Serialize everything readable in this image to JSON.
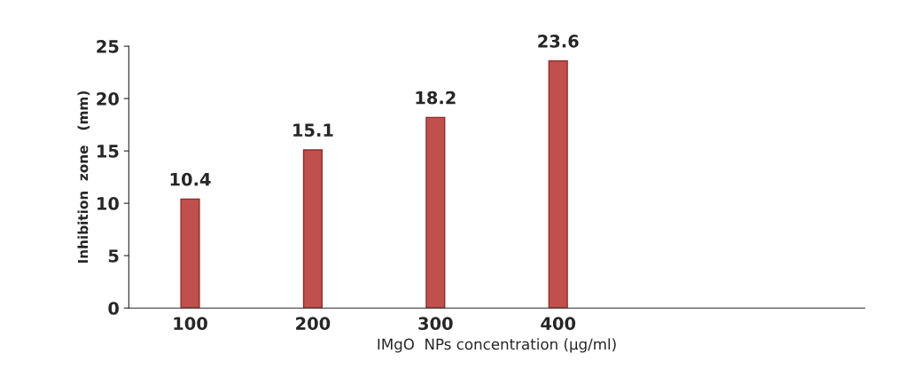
{
  "chart_data": {
    "type": "bar",
    "xlabel": "IMgO  NPs concentration (µg/ml)",
    "ylabel": "Inhibition  zone   (mm)",
    "categories": [
      "100",
      "200",
      "300",
      "400"
    ],
    "values": [
      10.4,
      15.1,
      18.2,
      23.6
    ],
    "color": "#c0504d",
    "ylim": [
      0,
      25
    ],
    "yticks": [
      0,
      5,
      10,
      15,
      20,
      25
    ],
    "data_labels": true,
    "grid": false
  }
}
